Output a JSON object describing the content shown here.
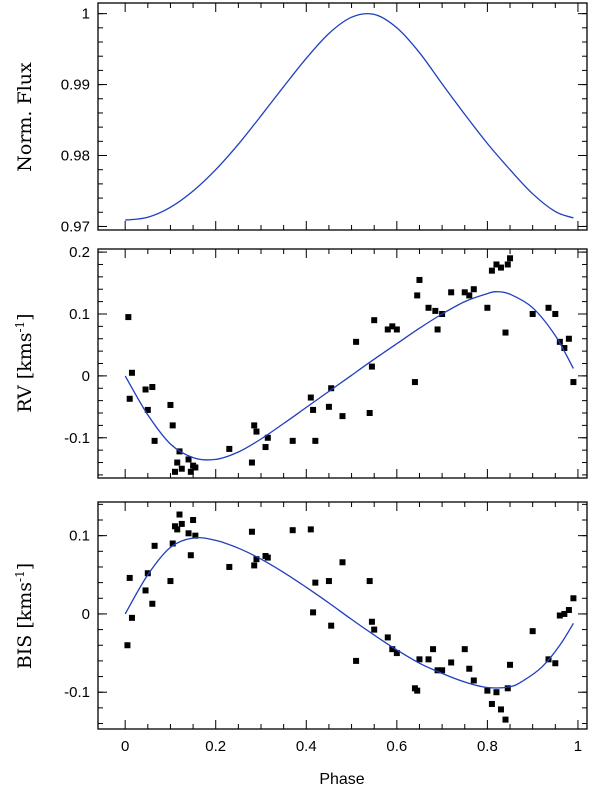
{
  "chart_data": [
    {
      "type": "line",
      "name": "flux",
      "ylabel": "Norm. Flux",
      "xlim": [
        -0.06,
        1.02
      ],
      "ylim": [
        0.9695,
        1.0015
      ],
      "yticks": [
        0.97,
        0.98,
        0.99,
        1
      ],
      "ytick_labels": [
        "0.97",
        "0.98",
        "0.99",
        "1"
      ],
      "model": {
        "x": [
          0.0,
          0.05,
          0.1,
          0.15,
          0.2,
          0.25,
          0.3,
          0.35,
          0.4,
          0.45,
          0.5,
          0.55,
          0.6,
          0.65,
          0.7,
          0.75,
          0.8,
          0.85,
          0.9,
          0.95,
          0.99
        ],
        "y": [
          0.9709,
          0.9713,
          0.9727,
          0.975,
          0.978,
          0.9816,
          0.9856,
          0.9897,
          0.9937,
          0.9972,
          0.9995,
          0.9999,
          0.998,
          0.9945,
          0.9901,
          0.9858,
          0.9817,
          0.978,
          0.9746,
          0.9721,
          0.9712
        ]
      }
    },
    {
      "type": "scatter",
      "name": "rv",
      "ylabel": "RV",
      "yunit": "kms",
      "yunit_exp": "-1",
      "xlim": [
        -0.06,
        1.02
      ],
      "ylim": [
        -0.165,
        0.205
      ],
      "yticks": [
        -0.1,
        0,
        0.1,
        0.2
      ],
      "ytick_labels": [
        "-0.1",
        "0",
        "0.1",
        "0.2"
      ],
      "points": {
        "x": [
          0.007,
          0.01,
          0.015,
          0.045,
          0.05,
          0.06,
          0.065,
          0.1,
          0.105,
          0.11,
          0.115,
          0.12,
          0.125,
          0.14,
          0.145,
          0.15,
          0.155,
          0.23,
          0.28,
          0.285,
          0.29,
          0.31,
          0.315,
          0.37,
          0.41,
          0.415,
          0.42,
          0.45,
          0.455,
          0.48,
          0.51,
          0.54,
          0.545,
          0.55,
          0.58,
          0.59,
          0.6,
          0.64,
          0.645,
          0.65,
          0.67,
          0.685,
          0.69,
          0.7,
          0.72,
          0.75,
          0.76,
          0.77,
          0.8,
          0.81,
          0.82,
          0.83,
          0.84,
          0.845,
          0.85,
          0.9,
          0.935,
          0.95,
          0.96,
          0.97,
          0.98,
          0.99
        ],
        "y": [
          0.095,
          -0.037,
          0.005,
          -0.022,
          -0.055,
          -0.018,
          -0.105,
          -0.047,
          -0.08,
          -0.155,
          -0.14,
          -0.122,
          -0.15,
          -0.135,
          -0.155,
          -0.145,
          -0.148,
          -0.118,
          -0.14,
          -0.08,
          -0.09,
          -0.115,
          -0.1,
          -0.105,
          -0.035,
          -0.055,
          -0.105,
          -0.05,
          -0.02,
          -0.065,
          0.055,
          -0.06,
          0.015,
          0.09,
          0.075,
          0.08,
          0.075,
          -0.01,
          0.13,
          0.155,
          0.11,
          0.105,
          0.075,
          0.1,
          0.135,
          0.135,
          0.13,
          0.14,
          0.11,
          0.17,
          0.18,
          0.175,
          0.07,
          0.18,
          0.19,
          0.1,
          0.11,
          0.1,
          0.055,
          0.045,
          0.06,
          -0.01
        ]
      },
      "model": {
        "x": [
          0.0,
          0.05,
          0.1,
          0.15,
          0.2,
          0.25,
          0.3,
          0.35,
          0.4,
          0.45,
          0.5,
          0.55,
          0.6,
          0.65,
          0.7,
          0.75,
          0.8,
          0.82,
          0.85,
          0.9,
          0.95,
          0.99
        ],
        "y": [
          0.0,
          -0.063,
          -0.11,
          -0.132,
          -0.135,
          -0.123,
          -0.102,
          -0.077,
          -0.051,
          -0.025,
          0.001,
          0.027,
          0.052,
          0.077,
          0.1,
          0.12,
          0.133,
          0.136,
          0.132,
          0.11,
          0.065,
          0.012
        ]
      }
    },
    {
      "type": "scatter",
      "name": "bis",
      "ylabel": "BIS",
      "yunit": "kms",
      "yunit_exp": "-1",
      "xlabel": "Phase",
      "xlim": [
        -0.06,
        1.02
      ],
      "xticks": [
        0,
        0.2,
        0.4,
        0.6,
        0.8,
        1
      ],
      "xtick_labels": [
        "0",
        "0.2",
        "0.4",
        "0.6",
        "0.8",
        "1"
      ],
      "ylim": [
        -0.147,
        0.143
      ],
      "yticks": [
        -0.1,
        0,
        0.1
      ],
      "ytick_labels": [
        "-0.1",
        "0",
        "0.1"
      ],
      "points": {
        "x": [
          0.005,
          0.01,
          0.015,
          0.045,
          0.05,
          0.06,
          0.065,
          0.1,
          0.105,
          0.11,
          0.115,
          0.12,
          0.125,
          0.14,
          0.145,
          0.15,
          0.155,
          0.23,
          0.28,
          0.285,
          0.29,
          0.31,
          0.315,
          0.37,
          0.41,
          0.415,
          0.42,
          0.45,
          0.455,
          0.48,
          0.51,
          0.54,
          0.545,
          0.55,
          0.58,
          0.59,
          0.6,
          0.64,
          0.645,
          0.65,
          0.67,
          0.68,
          0.69,
          0.7,
          0.72,
          0.75,
          0.76,
          0.77,
          0.8,
          0.81,
          0.82,
          0.83,
          0.84,
          0.845,
          0.85,
          0.9,
          0.935,
          0.95,
          0.96,
          0.97,
          0.98,
          0.99
        ],
        "y": [
          -0.04,
          0.046,
          -0.005,
          0.03,
          0.052,
          0.013,
          0.087,
          0.042,
          0.09,
          0.112,
          0.108,
          0.127,
          0.115,
          0.103,
          0.075,
          0.12,
          0.1,
          0.06,
          0.105,
          0.062,
          0.07,
          0.074,
          0.072,
          0.107,
          0.108,
          0.002,
          0.04,
          0.042,
          -0.015,
          0.066,
          -0.06,
          0.042,
          -0.01,
          -0.02,
          -0.03,
          -0.045,
          -0.05,
          -0.095,
          -0.098,
          -0.058,
          -0.058,
          -0.045,
          -0.072,
          -0.072,
          -0.062,
          -0.045,
          -0.07,
          -0.085,
          -0.098,
          -0.115,
          -0.1,
          -0.122,
          -0.135,
          -0.095,
          -0.065,
          -0.022,
          -0.058,
          -0.063,
          -0.002,
          0.0,
          0.005,
          0.02
        ]
      },
      "model": {
        "x": [
          0.0,
          0.05,
          0.1,
          0.15,
          0.2,
          0.25,
          0.3,
          0.35,
          0.4,
          0.45,
          0.5,
          0.55,
          0.6,
          0.65,
          0.7,
          0.75,
          0.8,
          0.85,
          0.88,
          0.92,
          0.96,
          0.99
        ],
        "y": [
          0.0,
          0.05,
          0.085,
          0.097,
          0.094,
          0.084,
          0.07,
          0.053,
          0.034,
          0.014,
          -0.007,
          -0.027,
          -0.046,
          -0.063,
          -0.076,
          -0.087,
          -0.094,
          -0.093,
          -0.085,
          -0.068,
          -0.04,
          -0.012
        ]
      }
    }
  ]
}
